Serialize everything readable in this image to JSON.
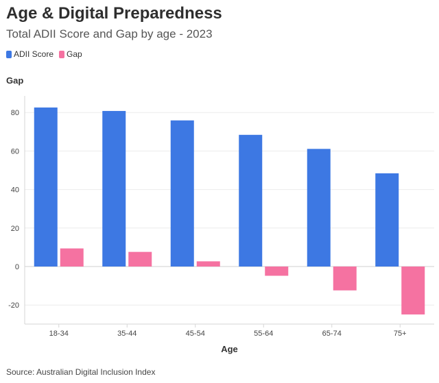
{
  "chart_data": {
    "type": "bar",
    "title": "Age & Digital Preparedness",
    "subtitle": "Total ADII Score and Gap by age - 2023",
    "xlabel": "Age",
    "ylabel": "Gap",
    "ylim": [
      -30,
      90
    ],
    "yticks": [
      -20,
      0,
      20,
      40,
      60,
      80
    ],
    "categories": [
      "18-34",
      "35-44",
      "45-54",
      "55-64",
      "65-74",
      "75+"
    ],
    "series": [
      {
        "name": "ADII Score",
        "color": "#3d78e3",
        "values": [
          82.6,
          80.8,
          75.9,
          68.4,
          61.1,
          48.4
        ]
      },
      {
        "name": "Gap",
        "color": "#f572a1",
        "values": [
          9.4,
          7.6,
          2.7,
          -4.8,
          -12.4,
          -24.9
        ]
      }
    ],
    "legend_position": "top-left"
  },
  "source": "Source: Australian Digital Inclusion Index"
}
